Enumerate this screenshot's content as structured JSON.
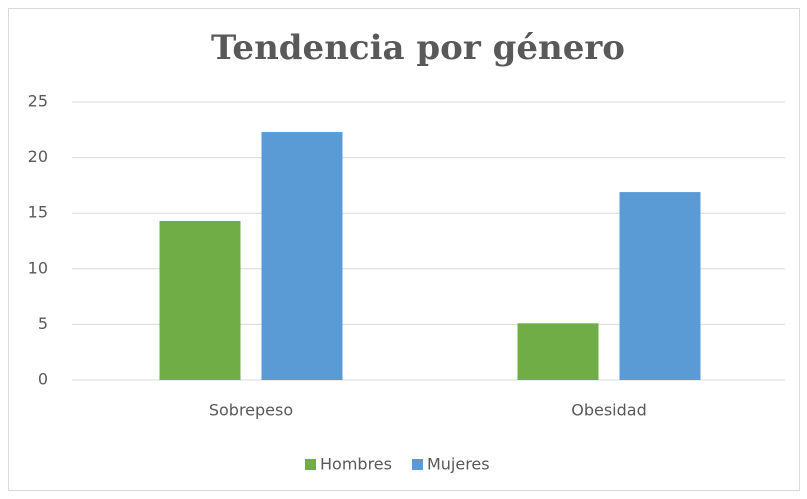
{
  "chart_data": {
    "type": "bar",
    "title": "Tendencia por género",
    "categories": [
      "Sobrepeso",
      "Obesidad"
    ],
    "series": [
      {
        "name": "Hombres",
        "color": "#70ad47",
        "values": [
          14.3,
          5.1
        ]
      },
      {
        "name": "Mujeres",
        "color": "#5b9bd5",
        "values": [
          22.3,
          16.9
        ]
      }
    ],
    "ylim": [
      0,
      25
    ],
    "yticks": [
      0,
      5,
      10,
      15,
      20,
      25
    ],
    "grid": true,
    "legend": "bottom"
  }
}
